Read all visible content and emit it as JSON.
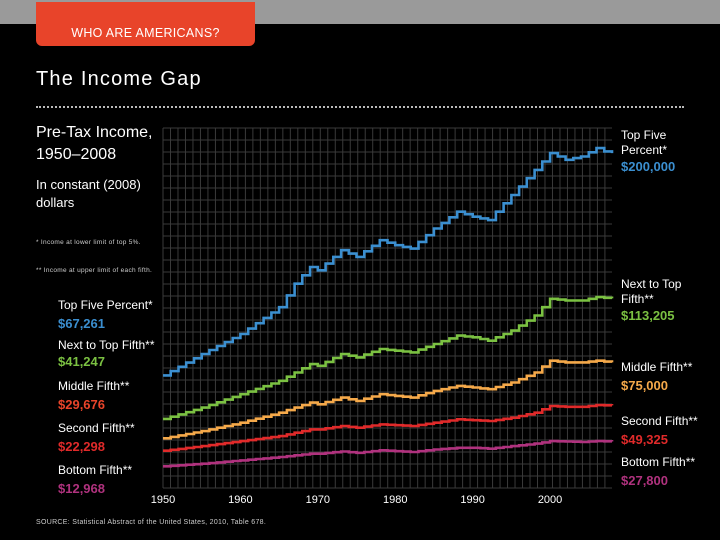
{
  "header": {
    "tab_label": "WHO ARE AMERICANS?",
    "title": "The Income Gap"
  },
  "chart_data": {
    "type": "line",
    "title": "Pre-Tax Income, 1950–2008",
    "subtitle": "In constant (2008) dollars",
    "notes": [
      "* Income at lower limit of top 5%.",
      "** Income at upper limit of each fifth."
    ],
    "source": "SOURCE: Statistical Abstract of the United States, 2010, Table 678.",
    "x_ticks": [
      "1950",
      "1960",
      "1970",
      "1980",
      "1990",
      "2000"
    ],
    "xlim": [
      1950,
      2008
    ],
    "ylim": [
      0,
      215000
    ],
    "grid": true,
    "series": [
      {
        "name": "Top Five Percent*",
        "color": "#3b8fd0",
        "start_label": "Top Five Percent*",
        "start_value": "$67,261",
        "end_label": "Top Five Percent*",
        "end_value": "$200,000",
        "points": [
          [
            1950,
            67261
          ],
          [
            1955,
            80000
          ],
          [
            1960,
            92000
          ],
          [
            1965,
            108000
          ],
          [
            1967,
            122000
          ],
          [
            1969,
            132000
          ],
          [
            1970,
            130000
          ],
          [
            1973,
            142000
          ],
          [
            1975,
            138000
          ],
          [
            1978,
            148000
          ],
          [
            1980,
            145000
          ],
          [
            1982,
            143000
          ],
          [
            1985,
            155000
          ],
          [
            1988,
            165000
          ],
          [
            1990,
            162000
          ],
          [
            1992,
            160000
          ],
          [
            1995,
            175000
          ],
          [
            1998,
            190000
          ],
          [
            2000,
            200000
          ],
          [
            2002,
            196000
          ],
          [
            2004,
            198000
          ],
          [
            2006,
            203000
          ],
          [
            2007,
            201000
          ],
          [
            2008,
            200000
          ]
        ]
      },
      {
        "name": "Next to Top Fifth**",
        "color": "#7bc142",
        "start_label": "Next to Top Fifth**",
        "start_value": "$41,247",
        "end_label": "Next to Top Fifth**",
        "end_value": "$113,205",
        "points": [
          [
            1950,
            41247
          ],
          [
            1955,
            48000
          ],
          [
            1960,
            56000
          ],
          [
            1965,
            64000
          ],
          [
            1969,
            74000
          ],
          [
            1970,
            73000
          ],
          [
            1973,
            80000
          ],
          [
            1975,
            78000
          ],
          [
            1978,
            83000
          ],
          [
            1980,
            82000
          ],
          [
            1982,
            81000
          ],
          [
            1985,
            86000
          ],
          [
            1988,
            91000
          ],
          [
            1990,
            90000
          ],
          [
            1992,
            88000
          ],
          [
            1995,
            94000
          ],
          [
            1998,
            103000
          ],
          [
            2000,
            113000
          ],
          [
            2002,
            112000
          ],
          [
            2004,
            112000
          ],
          [
            2006,
            114000
          ],
          [
            2008,
            113205
          ]
        ]
      },
      {
        "name": "Middle Fifth**",
        "color": "#f5a94a",
        "start_label": "Middle Fifth**",
        "start_value": "$29,676",
        "end_label": "Middle Fifth**",
        "end_value": "$75,000",
        "points": [
          [
            1950,
            29676
          ],
          [
            1955,
            34000
          ],
          [
            1960,
            39000
          ],
          [
            1965,
            45000
          ],
          [
            1969,
            51000
          ],
          [
            1970,
            50000
          ],
          [
            1973,
            54000
          ],
          [
            1975,
            52000
          ],
          [
            1978,
            56000
          ],
          [
            1980,
            55000
          ],
          [
            1982,
            54000
          ],
          [
            1985,
            58000
          ],
          [
            1988,
            61000
          ],
          [
            1990,
            60000
          ],
          [
            1992,
            59000
          ],
          [
            1995,
            63000
          ],
          [
            1998,
            69000
          ],
          [
            2000,
            76000
          ],
          [
            2002,
            75000
          ],
          [
            2004,
            75000
          ],
          [
            2006,
            76000
          ],
          [
            2008,
            75000
          ]
        ]
      },
      {
        "name": "Second Fifth**",
        "color": "#e02a2a",
        "start_label": "Second Fifth**",
        "start_value": "$22,298",
        "end_label": "Second Fifth**",
        "end_value": "$49,325",
        "points": [
          [
            1950,
            22298
          ],
          [
            1955,
            25000
          ],
          [
            1960,
            28000
          ],
          [
            1965,
            31000
          ],
          [
            1969,
            35000
          ],
          [
            1970,
            35000
          ],
          [
            1973,
            37000
          ],
          [
            1975,
            36000
          ],
          [
            1978,
            38000
          ],
          [
            1980,
            37500
          ],
          [
            1982,
            37000
          ],
          [
            1985,
            39000
          ],
          [
            1988,
            41000
          ],
          [
            1990,
            40500
          ],
          [
            1992,
            40000
          ],
          [
            1995,
            42000
          ],
          [
            1998,
            45000
          ],
          [
            2000,
            49000
          ],
          [
            2002,
            48500
          ],
          [
            2004,
            48500
          ],
          [
            2006,
            49500
          ],
          [
            2008,
            49325
          ]
        ]
      },
      {
        "name": "Bottom Fifth**",
        "color": "#b0327e",
        "start_label": "Bottom Fifth**",
        "start_value": "$12,968",
        "end_label": "Bottom Fifth**",
        "end_value": "$27,800",
        "points": [
          [
            1950,
            12968
          ],
          [
            1955,
            14500
          ],
          [
            1960,
            16500
          ],
          [
            1965,
            18500
          ],
          [
            1969,
            20500
          ],
          [
            1970,
            20500
          ],
          [
            1973,
            21800
          ],
          [
            1975,
            21000
          ],
          [
            1978,
            22500
          ],
          [
            1980,
            22000
          ],
          [
            1982,
            21500
          ],
          [
            1985,
            23000
          ],
          [
            1988,
            24000
          ],
          [
            1990,
            24000
          ],
          [
            1992,
            23500
          ],
          [
            1995,
            25000
          ],
          [
            1998,
            26500
          ],
          [
            2000,
            28000
          ],
          [
            2002,
            27800
          ],
          [
            2004,
            27500
          ],
          [
            2006,
            28000
          ],
          [
            2008,
            27800
          ]
        ]
      }
    ]
  }
}
